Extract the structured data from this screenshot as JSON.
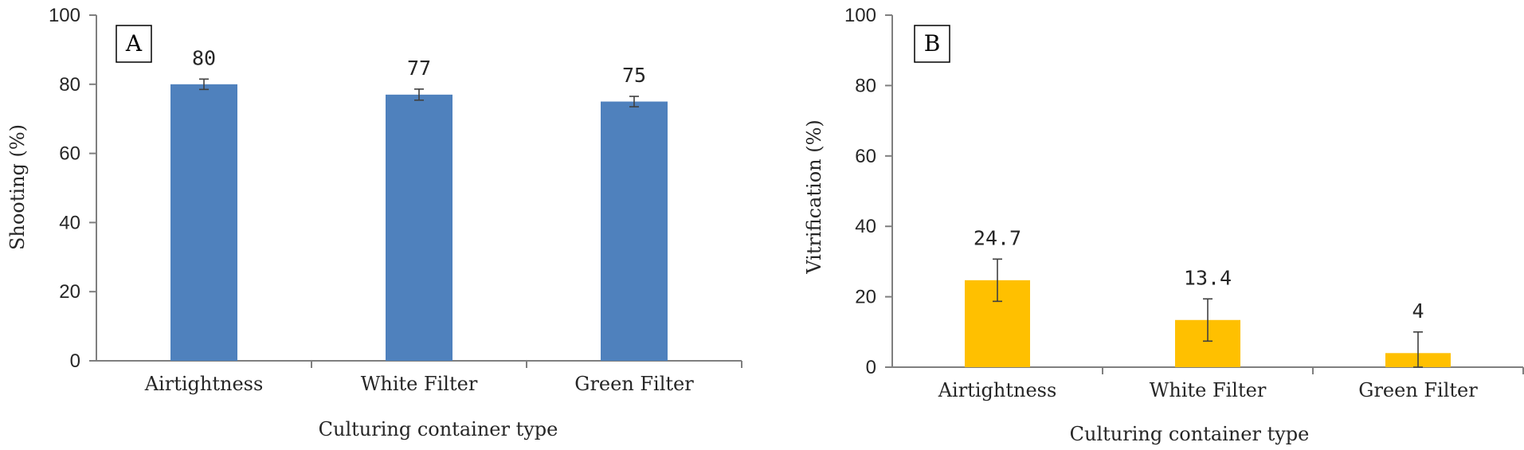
{
  "chart_data": [
    {
      "type": "bar",
      "panel_label": "A",
      "categories": [
        "Airtightness",
        "White Filter",
        "Green Filter"
      ],
      "values": [
        80,
        77,
        75
      ],
      "data_labels": [
        "80",
        "77",
        "75"
      ],
      "errors": [
        1.5,
        1.6,
        1.5
      ],
      "xlabel": "Culturing container type",
      "ylabel": "Shooting (%)",
      "ylim": [
        0,
        100
      ],
      "yticks": [
        "0",
        "20",
        "40",
        "60",
        "80",
        "100"
      ],
      "bar_color": "#4F81BD",
      "grid": false
    },
    {
      "type": "bar",
      "panel_label": "B",
      "categories": [
        "Airtightness",
        "White Filter",
        "Green Filter"
      ],
      "values": [
        24.7,
        13.4,
        4
      ],
      "data_labels": [
        "24.7",
        "13.4",
        "4"
      ],
      "errors": [
        6,
        6,
        6
      ],
      "xlabel": "Culturing container type",
      "ylabel": "Vitrification (%)",
      "ylim": [
        0,
        100
      ],
      "yticks": [
        "0",
        "20",
        "40",
        "60",
        "80",
        "100"
      ],
      "bar_color": "#FFC000",
      "grid": false
    }
  ]
}
